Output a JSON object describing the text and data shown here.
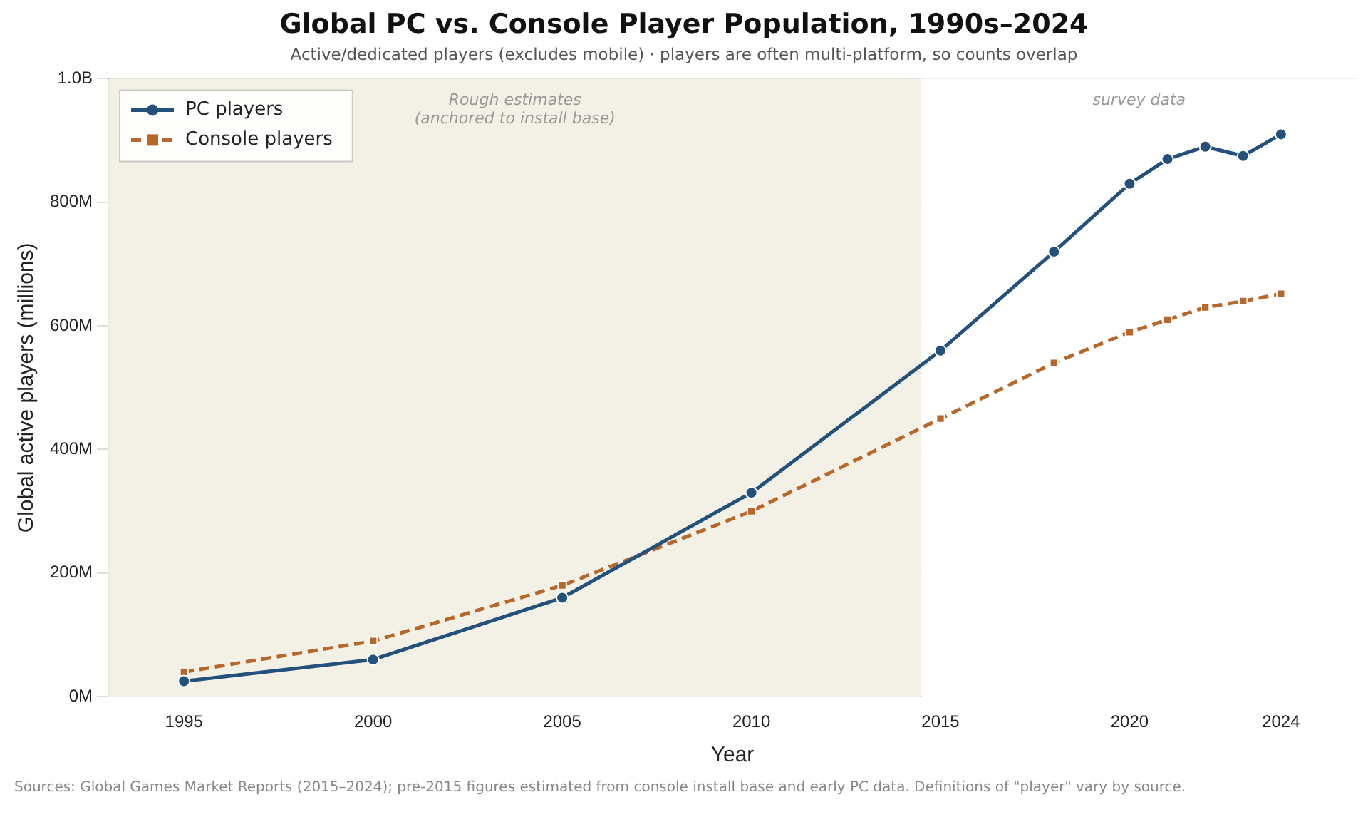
{
  "chart_data": {
    "type": "line",
    "title": "Global PC vs. Console Player Population, 1990s–2024",
    "subtitle": "Active/dedicated players (excludes mobile)  ·  players are often multi-platform, so counts overlap",
    "xlabel": "Year",
    "ylabel": "Global active players (millions)",
    "x": [
      1995,
      2000,
      2005,
      2010,
      2015,
      2018,
      2020,
      2021,
      2022,
      2023,
      2024
    ],
    "series": [
      {
        "name": "PC players",
        "color": "#24507c",
        "marker": "circle",
        "line_style": "solid",
        "values": [
          25000000,
          60000000,
          160000000,
          330000000,
          560000000,
          720000000,
          830000000,
          870000000,
          890000000,
          875000000,
          910000000
        ]
      },
      {
        "name": "Console players",
        "color": "#b8672a",
        "marker": "square",
        "line_style": "dashed",
        "values": [
          40000000,
          90000000,
          180000000,
          300000000,
          450000000,
          540000000,
          590000000,
          610000000,
          630000000,
          640000000,
          652000000
        ]
      }
    ],
    "xlim": [
      1993,
      2026
    ],
    "xticks": [
      1995,
      2000,
      2005,
      2010,
      2015,
      2020,
      2024
    ],
    "ylim": [
      0,
      1000000000
    ],
    "yticks": [
      {
        "value": 0,
        "label": "0M"
      },
      {
        "value": 200000000,
        "label": "200M"
      },
      {
        "value": 400000000,
        "label": "400M"
      },
      {
        "value": 600000000,
        "label": "600M"
      },
      {
        "value": 800000000,
        "label": "800M"
      },
      {
        "value": 1000000000,
        "label": "1.0B"
      }
    ],
    "bands": [
      {
        "axis": "x",
        "from": 1993,
        "to": 2014.5,
        "label": "Rough estimates\n(anchored to install base)",
        "color": "#f3f0e6"
      },
      {
        "axis": "x",
        "from": 2014.5,
        "to": 2026,
        "label": "survey data",
        "color": "#ffffff"
      }
    ],
    "grid": "y",
    "legend": "top left",
    "annotations": [
      "Sources: Global Games Market Reports (2015–2024); pre-2015 figures estimated from console install base and early PC data. Definitions of \"player\" vary by source."
    ]
  }
}
